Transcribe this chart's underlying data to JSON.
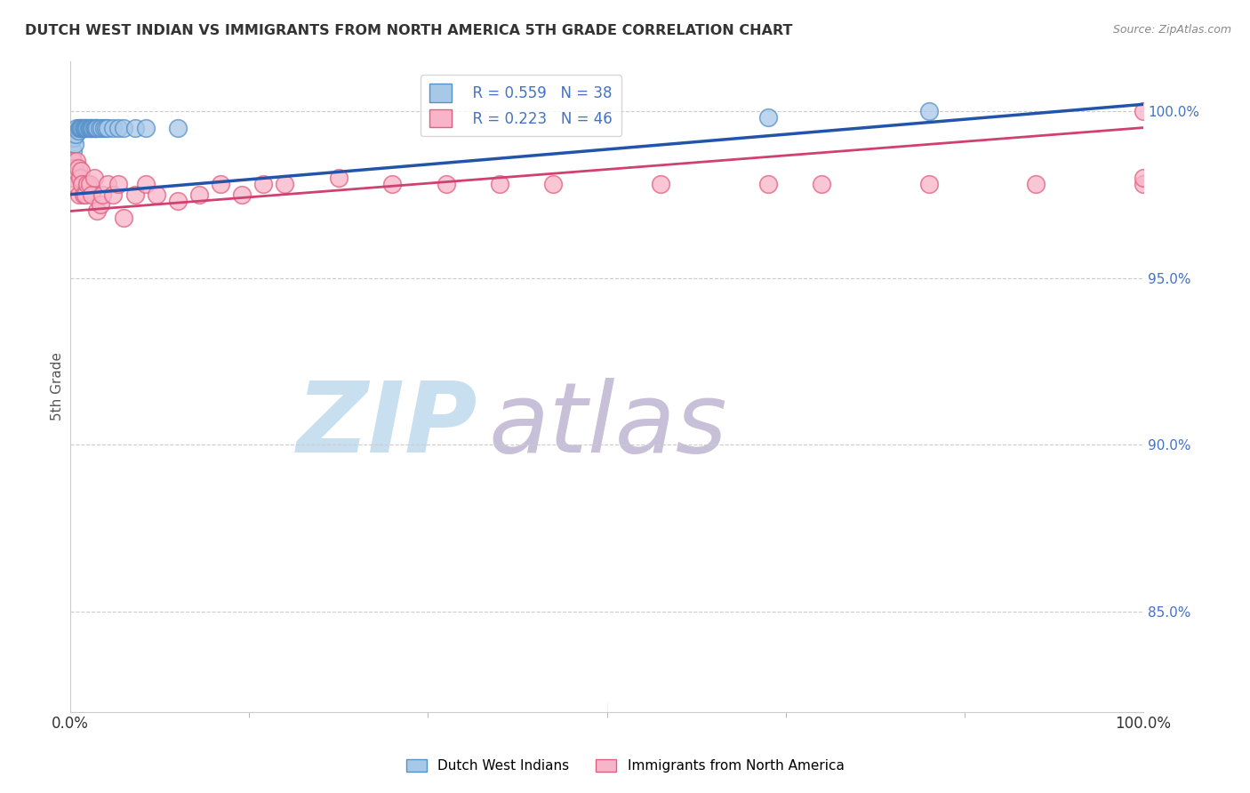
{
  "title": "DUTCH WEST INDIAN VS IMMIGRANTS FROM NORTH AMERICA 5TH GRADE CORRELATION CHART",
  "source": "Source: ZipAtlas.com",
  "ylabel": "5th Grade",
  "right_yticks": [
    85.0,
    90.0,
    95.0,
    100.0
  ],
  "blue_R": 0.559,
  "blue_N": 38,
  "pink_R": 0.223,
  "pink_N": 46,
  "blue_color": "#a8c8e8",
  "pink_color": "#f8b4c8",
  "blue_edge_color": "#5590c8",
  "pink_edge_color": "#e06080",
  "blue_line_color": "#2255aa",
  "pink_line_color": "#d04070",
  "legend_label_blue": "Dutch West Indians",
  "legend_label_pink": "Immigrants from North America",
  "blue_scatter_x": [
    0.1,
    0.2,
    0.3,
    0.4,
    0.5,
    0.6,
    0.7,
    0.8,
    0.9,
    1.0,
    1.1,
    1.2,
    1.3,
    1.4,
    1.5,
    1.6,
    1.7,
    1.8,
    1.9,
    2.0,
    2.1,
    2.2,
    2.3,
    2.4,
    2.5,
    2.7,
    2.9,
    3.1,
    3.3,
    3.5,
    4.0,
    4.5,
    5.0,
    6.0,
    7.0,
    10.0,
    65.0,
    80.0
  ],
  "blue_scatter_y": [
    98.5,
    98.8,
    99.2,
    99.0,
    99.3,
    99.5,
    99.4,
    99.5,
    99.5,
    99.5,
    99.5,
    99.5,
    99.5,
    99.5,
    99.5,
    99.5,
    99.5,
    99.5,
    99.5,
    99.5,
    99.5,
    99.5,
    99.5,
    99.5,
    99.5,
    99.5,
    99.5,
    99.5,
    99.5,
    99.5,
    99.5,
    99.5,
    99.5,
    99.5,
    99.5,
    99.5,
    99.8,
    100.0
  ],
  "pink_scatter_x": [
    0.1,
    0.2,
    0.3,
    0.4,
    0.5,
    0.6,
    0.7,
    0.8,
    0.9,
    1.0,
    1.1,
    1.2,
    1.4,
    1.6,
    1.8,
    2.0,
    2.2,
    2.5,
    2.8,
    3.0,
    3.5,
    4.0,
    4.5,
    5.0,
    6.0,
    7.0,
    8.0,
    10.0,
    12.0,
    14.0,
    16.0,
    18.0,
    20.0,
    25.0,
    30.0,
    35.0,
    40.0,
    45.0,
    55.0,
    65.0,
    70.0,
    80.0,
    90.0,
    100.0,
    100.0,
    100.0
  ],
  "pink_scatter_y": [
    98.0,
    98.5,
    98.3,
    97.8,
    98.2,
    98.5,
    98.3,
    97.5,
    98.0,
    98.2,
    97.8,
    97.5,
    97.5,
    97.8,
    97.8,
    97.5,
    98.0,
    97.0,
    97.2,
    97.5,
    97.8,
    97.5,
    97.8,
    96.8,
    97.5,
    97.8,
    97.5,
    97.3,
    97.5,
    97.8,
    97.5,
    97.8,
    97.8,
    98.0,
    97.8,
    97.8,
    97.8,
    97.8,
    97.8,
    97.8,
    97.8,
    97.8,
    97.8,
    97.8,
    98.0,
    100.0
  ],
  "xlim": [
    0,
    100
  ],
  "ylim": [
    82.0,
    101.5
  ],
  "background_color": "#ffffff",
  "watermark_zip": "ZIP",
  "watermark_atlas": "atlas",
  "watermark_color_zip": "#c8dff0",
  "watermark_color_atlas": "#c8c0d8",
  "grid_color": "#cccccc",
  "tick_label_color": "#4472c4",
  "title_color": "#333333",
  "source_color": "#888888"
}
